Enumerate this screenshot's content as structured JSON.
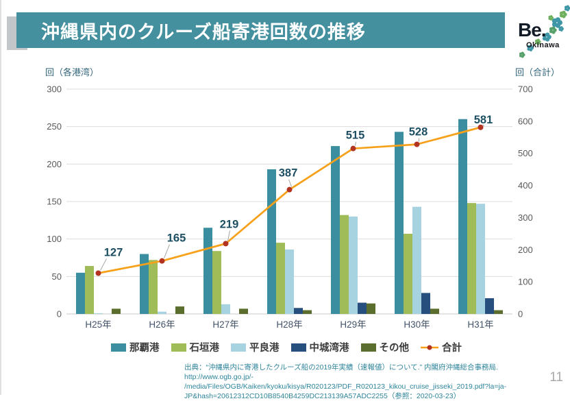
{
  "header": {
    "title": "沖縄県内のクルーズ船寄港回数の推移",
    "bar_color": "#45909f",
    "accent_color": "#c3c6c8"
  },
  "logo": {
    "text": "Be.",
    "subtext": "Okinawa"
  },
  "chart_data": {
    "type": "bar",
    "subtype": "grouped-bars-with-line",
    "categories": [
      "H25年",
      "H26年",
      "H27年",
      "H28年",
      "H29年",
      "H30年",
      "H31年"
    ],
    "series": [
      {
        "name": "那覇港",
        "type": "bar",
        "color": "#3b8ea0",
        "values": [
          55,
          80,
          115,
          193,
          224,
          243,
          260
        ]
      },
      {
        "name": "石垣港",
        "type": "bar",
        "color": "#a0bc59",
        "values": [
          64,
          72,
          84,
          95,
          132,
          107,
          148
        ]
      },
      {
        "name": "平良港",
        "type": "bar",
        "color": "#a6d3df",
        "values": [
          1,
          3,
          13,
          86,
          130,
          143,
          147
        ]
      },
      {
        "name": "中城湾港",
        "type": "bar",
        "color": "#274f7e",
        "values": [
          0,
          0,
          0,
          8,
          15,
          28,
          21
        ]
      },
      {
        "name": "その他",
        "type": "bar",
        "color": "#5c6e2d",
        "values": [
          7,
          10,
          7,
          5,
          14,
          7,
          5
        ]
      },
      {
        "name": "合計",
        "type": "line",
        "color": "#f7a11a",
        "marker_color": "#b23320",
        "axis": "right",
        "values": [
          127,
          165,
          219,
          387,
          515,
          528,
          581
        ],
        "data_labels": true
      }
    ],
    "left_axis": {
      "title": "回（各港湾）",
      "min": 0,
      "max": 300,
      "step": 50
    },
    "right_axis": {
      "title": "回（合計）",
      "min": 0,
      "max": 700,
      "step": 100
    },
    "styles": {
      "grid_color": "#dcdcdc",
      "zero_line_color": "#c8c8c8",
      "tick_label_color": "#595959",
      "axis_title_color": "#31657b",
      "category_label_color": "#44546a",
      "data_label_color": "#1d4f63",
      "leader_line_color": "#a6a6a6"
    },
    "grid": true,
    "legend_position": "bottom"
  },
  "source": {
    "lines": [
      "出典：“沖縄県内に寄港したクルーズ船の2019年実績（速報値）について.” 内閣府沖縄総合事務局. http://www.ogb.go.jp/-",
      "/media/Files/OGB/Kaiken/kyoku/kisya/R020123/PDF_R020123_kikou_cruise_jisseki_2019.pdf?la=ja-",
      "JP&hash=20612312CD10B8540B4259DC213139A57ADC2255（参照：2020-03-23）"
    ]
  },
  "page": {
    "number": "11"
  }
}
